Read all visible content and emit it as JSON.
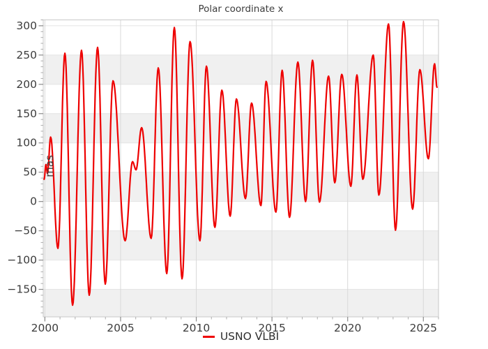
{
  "chart_data": {
    "type": "line",
    "title": "Polar coordinate x",
    "xlabel": "",
    "ylabel": "mas",
    "legend": [
      {
        "name": "USNO VLBI",
        "color": "#ee0000"
      }
    ],
    "legend_position": "bottom-center",
    "grid": true,
    "xlim": [
      1999.89,
      2026.0
    ],
    "ylim": [
      -197,
      310
    ],
    "xticks": [
      2000,
      2005,
      2010,
      2015,
      2020,
      2025
    ],
    "yticks": [
      -150,
      -100,
      -50,
      0,
      50,
      100,
      150,
      200,
      250,
      300
    ],
    "x_minor_tick_step": 1,
    "y_minor_tick_step": 10,
    "background_gray_bands": [
      [
        -200,
        -150
      ],
      [
        -100,
        -50
      ],
      [
        0,
        50
      ],
      [
        100,
        150
      ],
      [
        200,
        250
      ]
    ],
    "series": [
      {
        "name": "USNO VLBI",
        "color": "#ee0000",
        "interpolation": "cosine-between-extrema",
        "units": "mas",
        "points_extrema": [
          [
            1999.95,
            38
          ],
          [
            2000.07,
            63
          ],
          [
            2000.17,
            48
          ],
          [
            2000.38,
            110
          ],
          [
            2000.86,
            -80
          ],
          [
            2001.32,
            253
          ],
          [
            2001.83,
            -177
          ],
          [
            2002.42,
            258
          ],
          [
            2002.93,
            -160
          ],
          [
            2003.48,
            263
          ],
          [
            2003.99,
            -141
          ],
          [
            2004.5,
            206
          ],
          [
            2005.3,
            -67
          ],
          [
            2005.79,
            68
          ],
          [
            2006.02,
            54
          ],
          [
            2006.39,
            126
          ],
          [
            2007.02,
            -63
          ],
          [
            2007.49,
            228
          ],
          [
            2008.05,
            -123
          ],
          [
            2008.55,
            297
          ],
          [
            2009.06,
            -132
          ],
          [
            2009.59,
            273
          ],
          [
            2010.24,
            -67
          ],
          [
            2010.67,
            231
          ],
          [
            2011.23,
            -44
          ],
          [
            2011.69,
            190
          ],
          [
            2012.24,
            -25
          ],
          [
            2012.65,
            175
          ],
          [
            2013.25,
            5
          ],
          [
            2013.65,
            168
          ],
          [
            2014.27,
            -7
          ],
          [
            2014.61,
            205
          ],
          [
            2015.26,
            -18
          ],
          [
            2015.67,
            224
          ],
          [
            2016.16,
            -27
          ],
          [
            2016.71,
            238
          ],
          [
            2017.22,
            0
          ],
          [
            2017.68,
            241
          ],
          [
            2018.14,
            -1
          ],
          [
            2018.74,
            214
          ],
          [
            2019.15,
            32
          ],
          [
            2019.61,
            217
          ],
          [
            2020.21,
            26
          ],
          [
            2020.61,
            216
          ],
          [
            2021.0,
            38
          ],
          [
            2021.69,
            250
          ],
          [
            2022.06,
            11
          ],
          [
            2022.7,
            303
          ],
          [
            2023.16,
            -49
          ],
          [
            2023.69,
            307
          ],
          [
            2024.29,
            -13
          ],
          [
            2024.77,
            225
          ],
          [
            2025.33,
            73
          ],
          [
            2025.74,
            235
          ],
          [
            2025.9,
            195
          ]
        ]
      }
    ]
  },
  "colors": {
    "accent_red": "#ee0000",
    "band_gray": "#f0f0f0",
    "h_grid": "#e4e4e4",
    "v_grid": "#d9d9d9",
    "frame": "#c8c8c8",
    "tick_major": "#8a8a8a",
    "tick_minor": "#adadad",
    "text": "#3c3c3c"
  }
}
